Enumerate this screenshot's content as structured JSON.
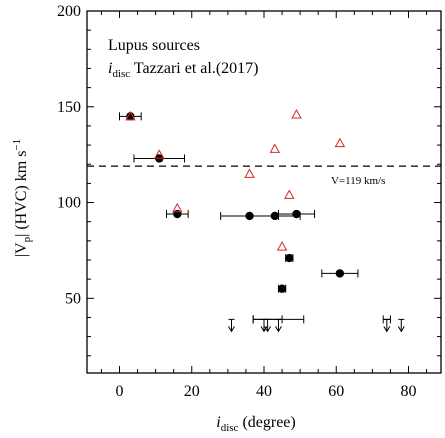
{
  "chart_data": {
    "type": "scatter",
    "title": "",
    "annotations": {
      "line1": "Lupus sources",
      "line2_italic": "i",
      "line2_sub": "disc",
      "line2_rest": " Tazzari et al.(2017)",
      "hline_label": "V=119 km/s"
    },
    "xlabel": {
      "italic": "i",
      "sub": "disc",
      "rest": " (degree)"
    },
    "ylabel": {
      "pre": "|V",
      "sub": "p",
      "post": "| (HVC) km s",
      "sup": "−1"
    },
    "xlim": [
      -9,
      89
    ],
    "ylim": [
      11,
      200
    ],
    "xticks": [
      0,
      20,
      40,
      60,
      80
    ],
    "yticks": [
      50,
      100,
      150,
      200
    ],
    "hline": 119,
    "colors": {
      "detected": "#000000",
      "triangle": "#d62728",
      "axis": "#000000"
    },
    "series": [
      {
        "marker": "filled-circle",
        "points": [
          {
            "x": 3,
            "y": 145,
            "xerr": 3
          },
          {
            "x": 11,
            "y": 123,
            "xerr": 7
          },
          {
            "x": 16,
            "y": 94,
            "xerr": 3
          },
          {
            "x": 36,
            "y": 93,
            "xerr": 8
          },
          {
            "x": 43,
            "y": 93,
            "xerr": 7
          },
          {
            "x": 49,
            "y": 94,
            "xerr": 5
          },
          {
            "x": 47,
            "y": 71,
            "xerr": 1
          },
          {
            "x": 45,
            "y": 55,
            "xerr": 1
          },
          {
            "x": 61,
            "y": 63,
            "xerr": 5
          }
        ]
      },
      {
        "marker": "open-triangle",
        "points": [
          {
            "x": 3,
            "y": 145
          },
          {
            "x": 11,
            "y": 125
          },
          {
            "x": 16,
            "y": 97
          },
          {
            "x": 36,
            "y": 115
          },
          {
            "x": 43,
            "y": 128
          },
          {
            "x": 49,
            "y": 146
          },
          {
            "x": 47,
            "y": 104
          },
          {
            "x": 45,
            "y": 77
          },
          {
            "x": 61,
            "y": 131
          }
        ]
      },
      {
        "marker": "upper-limit-arrow",
        "points": [
          {
            "x": 31,
            "y": 39
          },
          {
            "x": 40,
            "y": 39
          },
          {
            "x": 41,
            "y": 39,
            "xerr": 4
          },
          {
            "x": 44,
            "y": 39,
            "xerr": 7
          },
          {
            "x": 74,
            "y": 39,
            "xerr": 1
          },
          {
            "x": 78,
            "y": 39
          }
        ]
      }
    ]
  }
}
